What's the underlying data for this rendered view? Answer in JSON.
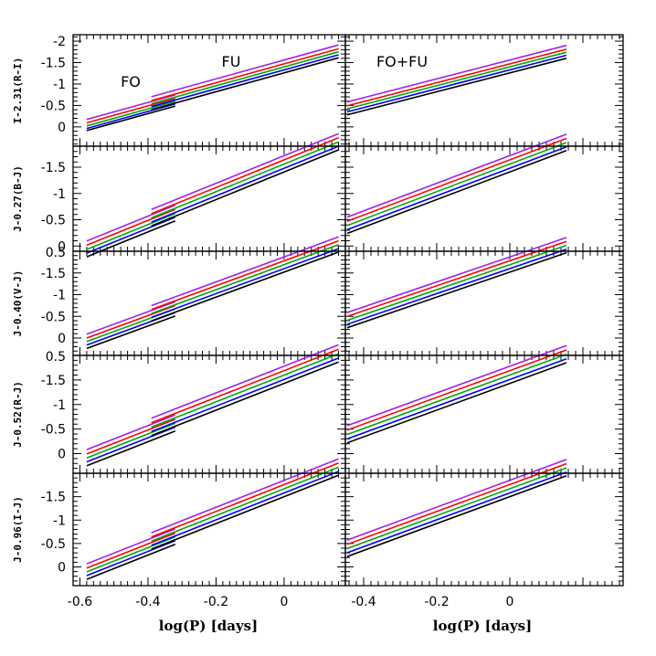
{
  "chart_data": {
    "type": "line",
    "title": "",
    "layout": "5 rows x 2 columns of panels",
    "columns": [
      {
        "xlim": [
          -0.62,
          0.18
        ],
        "xticks": [
          -0.6,
          -0.4,
          -0.2,
          0
        ],
        "tick_labels": [
          "-0.6",
          "-0.4",
          "-0.2",
          "0"
        ]
      },
      {
        "xlim": [
          -0.45,
          0.31
        ],
        "xticks": [
          -0.4,
          -0.2,
          0
        ],
        "tick_labels": [
          "-0.4",
          "-0.2",
          "0"
        ]
      }
    ],
    "xlabel": "log(P) [days]",
    "annotations": [
      {
        "text": "FO",
        "panel": [
          0,
          0
        ]
      },
      {
        "text": "FU",
        "panel": [
          0,
          0
        ]
      },
      {
        "text": "FO+FU",
        "panel": [
          0,
          1
        ]
      }
    ],
    "series_colors": [
      "#000000",
      "#0000ff",
      "#00aa00",
      "#ff0000",
      "#a020f0"
    ],
    "series_names": [
      "black",
      "blue",
      "green",
      "red",
      "purple"
    ],
    "ranges": {
      "FO": [
        -0.58,
        -0.32
      ],
      "FU": [
        -0.39,
        0.16
      ],
      "COMB": [
        -0.445,
        0.155
      ]
    },
    "rows": [
      {
        "ylabel": "I-2.31(R-I)",
        "ylim": [
          0.45,
          -2.15
        ],
        "yticks": [
          -2,
          -1.5,
          -1,
          -0.5,
          0
        ],
        "ytick_labels": [
          "-2",
          "-1.5",
          "-1",
          "-0.5",
          "0"
        ],
        "fo": {
          "slope": 2.2,
          "intercepts": [
            1.19,
            1.24,
            1.3,
            1.37,
            1.45
          ]
        },
        "fu": {
          "slope": 2.2,
          "intercepts": [
            1.26,
            1.33,
            1.4,
            1.47,
            1.56
          ]
        },
        "comb": {
          "slope": 2.2,
          "intercepts": [
            1.26,
            1.33,
            1.4,
            1.47,
            1.56
          ]
        }
      },
      {
        "ylabel": "J-0.27(B-J)",
        "ylim": [
          0.1,
          -1.9
        ],
        "yticks": [
          -1.5,
          -1,
          -0.5,
          0
        ],
        "ytick_labels": [
          "-1.5",
          "-1",
          "-0.5",
          "0"
        ],
        "fo": {
          "slope": 2.63,
          "intercepts": [
            1.32,
            1.39,
            1.46,
            1.54,
            1.62
          ]
        },
        "fu": {
          "slope": 2.63,
          "intercepts": [
            1.41,
            1.48,
            1.56,
            1.64,
            1.72
          ]
        },
        "comb": {
          "slope": 2.63,
          "intercepts": [
            1.41,
            1.48,
            1.56,
            1.64,
            1.72
          ]
        }
      },
      {
        "ylabel": "J-0.40(V-J)",
        "ylim": [
          0.4,
          -2.0
        ],
        "yticks": [
          -1.5,
          -1,
          -0.5,
          0
        ],
        "ytick_labels": [
          "-1.5",
          "-1",
          "-0.5",
          "0"
        ],
        "fo": {
          "slope": 2.88,
          "intercepts": [
            1.43,
            1.51,
            1.59,
            1.67,
            1.76
          ]
        },
        "fu": {
          "slope": 2.88,
          "intercepts": [
            1.52,
            1.6,
            1.69,
            1.78,
            1.87
          ]
        },
        "comb": {
          "slope": 2.88,
          "intercepts": [
            1.52,
            1.6,
            1.69,
            1.78,
            1.87
          ]
        }
      },
      {
        "ylabel": "J-0.52(R-J)",
        "ylim": [
          0.4,
          -2.0
        ],
        "yticks": [
          -1.5,
          -1,
          -0.5,
          0
        ],
        "ytick_labels": [
          "-1.5",
          "-1",
          "-0.5",
          "0"
        ],
        "fo": {
          "slope": 2.72,
          "intercepts": [
            1.33,
            1.41,
            1.49,
            1.57,
            1.66
          ]
        },
        "fu": {
          "slope": 2.72,
          "intercepts": [
            1.43,
            1.51,
            1.6,
            1.69,
            1.78
          ]
        },
        "comb": {
          "slope": 2.72,
          "intercepts": [
            1.43,
            1.51,
            1.6,
            1.69,
            1.78
          ]
        }
      },
      {
        "ylabel": "J-0.96(I-J)",
        "ylim": [
          0.4,
          -2.0
        ],
        "yticks": [
          -1.5,
          -1,
          -0.5,
          0
        ],
        "ytick_labels": [
          "-1.5",
          "-1",
          "-0.5",
          "0"
        ],
        "fo": {
          "slope": 2.87,
          "intercepts": [
            1.4,
            1.48,
            1.56,
            1.64,
            1.73
          ]
        },
        "fu": {
          "slope": 2.87,
          "intercepts": [
            1.5,
            1.58,
            1.67,
            1.76,
            1.85
          ]
        },
        "comb": {
          "slope": 2.87,
          "intercepts": [
            1.5,
            1.58,
            1.67,
            1.76,
            1.85
          ]
        }
      }
    ]
  }
}
